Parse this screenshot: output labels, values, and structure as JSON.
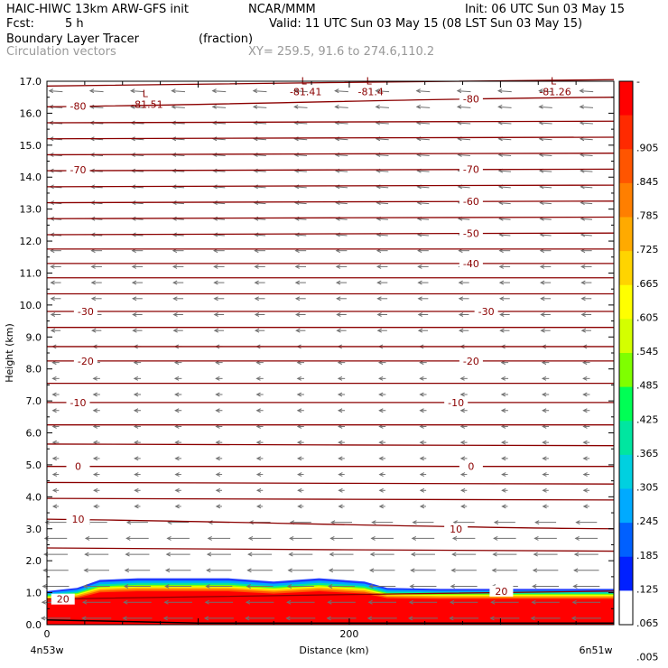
{
  "header": {
    "model": "HAIC-HIWC 13km ARW-GFS init",
    "org": "NCAR/MMM",
    "init": "Init: 06 UTC Sun 03 May 15",
    "fcst_label": "Fcst:",
    "fcst_value": "5 h",
    "valid": "Valid: 11 UTC Sun 03 May 15 (08 LST Sun 03 May 15)",
    "field": "Boundary Layer Tracer",
    "units": "(fraction)",
    "vectors": "Circulation vectors",
    "xy": "XY= 259.5, 91.6 to 274.6,110.2"
  },
  "chart_data": {
    "type": "heatmap",
    "ylabel": "Height (km)",
    "xlabel": "Distance (km)",
    "x_start_label": "4n53w",
    "x_end_label": "6n51w",
    "ylim": [
      0,
      17
    ],
    "xlim": [
      0,
      375
    ],
    "yticks": [
      "0.0",
      "1.0",
      "2.0",
      "3.0",
      "4.0",
      "5.0",
      "6.0",
      "7.0",
      "8.0",
      "9.0",
      "10.0",
      "11.0",
      "12.0",
      "13.0",
      "14.0",
      "15.0",
      "16.0",
      "17.0"
    ],
    "xticks": [
      {
        "value": 0,
        "label": "0"
      },
      {
        "value": 200,
        "label": "200"
      }
    ],
    "colorbar": {
      "labels": [
        "-",
        ".905",
        ".845",
        ".785",
        ".725",
        ".665",
        ".605",
        ".545",
        ".485",
        ".425",
        ".365",
        ".305",
        ".245",
        ".185",
        ".125",
        ".065",
        ".005"
      ],
      "colors": [
        "#ff0000",
        "#ff2a00",
        "#ff5500",
        "#ff7f00",
        "#ffaa00",
        "#ffd400",
        "#ffff00",
        "#d4ff00",
        "#7fff00",
        "#00ff55",
        "#00e6a0",
        "#00d0e0",
        "#00aaff",
        "#0060ff",
        "#0020ff",
        "#ffffff"
      ]
    },
    "tracer_top_km": [
      [
        0,
        1.05
      ],
      [
        20,
        1.15
      ],
      [
        35,
        1.4
      ],
      [
        60,
        1.45
      ],
      [
        120,
        1.45
      ],
      [
        150,
        1.35
      ],
      [
        180,
        1.45
      ],
      [
        210,
        1.35
      ],
      [
        225,
        1.15
      ],
      [
        260,
        1.12
      ],
      [
        320,
        1.12
      ],
      [
        375,
        1.12
      ]
    ],
    "isotherms": [
      {
        "y0": 16.85,
        "y1": 17.05
      },
      {
        "y0": 16.2,
        "y1": 16.5,
        "label": "-80",
        "positions": [
          {
            "x": 20,
            "y": 16.23
          },
          {
            "x": 280,
            "y": 16.45
          }
        ]
      },
      {
        "y0": 15.7,
        "y1": 15.75
      },
      {
        "y0": 15.2,
        "y1": 15.25
      },
      {
        "y0": 14.7,
        "y1": 14.75
      },
      {
        "y0": 14.2,
        "y1": 14.25,
        "label": "-70",
        "positions": [
          {
            "x": 20,
            "y": 14.23
          },
          {
            "x": 280,
            "y": 14.24
          }
        ]
      },
      {
        "y0": 13.7,
        "y1": 13.75
      },
      {
        "y0": 13.2,
        "y1": 13.25,
        "label": "-60",
        "positions": [
          {
            "x": 280,
            "y": 13.24
          }
        ]
      },
      {
        "y0": 12.7,
        "y1": 12.75
      },
      {
        "y0": 12.2,
        "y1": 12.25,
        "label": "-50",
        "positions": [
          {
            "x": 280,
            "y": 12.24
          }
        ]
      },
      {
        "y0": 11.75,
        "y1": 11.75
      },
      {
        "y0": 11.3,
        "y1": 11.3,
        "label": "-40",
        "positions": [
          {
            "x": 280,
            "y": 11.3
          }
        ]
      },
      {
        "y0": 10.85,
        "y1": 10.85
      },
      {
        "y0": 10.35,
        "y1": 10.35
      },
      {
        "y0": 9.8,
        "y1": 9.8,
        "label": "-30",
        "positions": [
          {
            "x": 25,
            "y": 9.8
          },
          {
            "x": 290,
            "y": 9.8
          }
        ]
      },
      {
        "y0": 9.3,
        "y1": 9.3
      },
      {
        "y0": 8.7,
        "y1": 8.7
      },
      {
        "y0": 8.25,
        "y1": 8.25,
        "label": "-20",
        "positions": [
          {
            "x": 25,
            "y": 8.25
          },
          {
            "x": 280,
            "y": 8.25
          }
        ]
      },
      {
        "y0": 7.55,
        "y1": 7.55
      },
      {
        "y0": 6.95,
        "y1": 6.95,
        "label": "-10",
        "positions": [
          {
            "x": 20,
            "y": 6.95
          },
          {
            "x": 270,
            "y": 6.95
          }
        ]
      },
      {
        "y0": 6.25,
        "y1": 6.25
      },
      {
        "y0": 5.65,
        "y1": 5.6
      },
      {
        "y0": 4.95,
        "y1": 4.95,
        "label": "0",
        "positions": [
          {
            "x": 20,
            "y": 4.95
          },
          {
            "x": 280,
            "y": 4.95
          }
        ]
      },
      {
        "y0": 4.45,
        "y1": 4.4
      },
      {
        "y0": 3.95,
        "y1": 3.9
      },
      {
        "y0": 3.3,
        "y1": 3.0,
        "label": "10",
        "positions": [
          {
            "x": 20,
            "y": 3.3
          },
          {
            "x": 270,
            "y": 3.0
          }
        ]
      },
      {
        "y0": 2.4,
        "y1": 2.3
      },
      {
        "y0": 0.8,
        "y1": 1.05,
        "label": "20",
        "positions": [
          {
            "x": 10,
            "y": 0.8
          },
          {
            "x": 300,
            "y": 1.05
          }
        ]
      }
    ],
    "lows": [
      {
        "x": 65,
        "y": 16.5,
        "value": "-81.51"
      },
      {
        "x": 170,
        "y": 16.9,
        "value": "-81.41"
      },
      {
        "x": 213,
        "y": 16.9,
        "value": "-81.4"
      },
      {
        "x": 335,
        "y": 16.9,
        "value": "-81.26"
      }
    ],
    "low_symbol": "L"
  }
}
